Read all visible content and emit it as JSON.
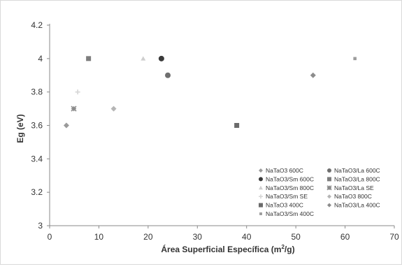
{
  "chart_data": {
    "type": "scatter",
    "title": "",
    "xlabel": "Área Superficial Específica (m²/g)",
    "ylabel": "Eg (eV)",
    "xlim": [
      0,
      70
    ],
    "ylim": [
      3,
      4.2
    ],
    "x_ticks": [
      "0",
      "10",
      "20",
      "30",
      "40",
      "50",
      "60",
      "70"
    ],
    "y_ticks": [
      "3",
      "3.2",
      "3.4",
      "3.6",
      "3.8",
      "4",
      "4.2"
    ],
    "grid": false,
    "legend_position": "bottom-right",
    "series": [
      {
        "name": "NaTaO3 600C",
        "marker": "diamond",
        "color": "#9a9a9a",
        "points": [
          {
            "x": 3.4,
            "y": 3.6
          }
        ]
      },
      {
        "name": "NaTaO3/La 600C",
        "marker": "circle",
        "color": "#6f6f6f",
        "points": [
          {
            "x": 24,
            "y": 3.9
          }
        ]
      },
      {
        "name": "NaTaO3/Sm 600C",
        "marker": "circle",
        "color": "#3a3a3a",
        "points": [
          {
            "x": 22.7,
            "y": 4.0
          }
        ]
      },
      {
        "name": "NaTaO3/La 800C",
        "marker": "square",
        "color": "#7d7d7d",
        "points": [
          {
            "x": 7.9,
            "y": 4.0
          }
        ]
      },
      {
        "name": "NaTaO3/Sm 800C",
        "marker": "triangle",
        "color": "#cfcfcf",
        "points": [
          {
            "x": 19,
            "y": 4.0
          }
        ]
      },
      {
        "name": "NaTaO3/La SE",
        "marker": "asterisk",
        "color": "#8a8a8a",
        "points": [
          {
            "x": 4.9,
            "y": 3.7
          }
        ]
      },
      {
        "name": "NaTaO3/Sm SE",
        "marker": "plus",
        "color": "#d6d6d6",
        "points": [
          {
            "x": 5.7,
            "y": 3.8
          }
        ]
      },
      {
        "name": "NaTaO3 800C",
        "marker": "diamond",
        "color": "#b5b5b5",
        "points": [
          {
            "x": 13,
            "y": 3.7
          }
        ]
      },
      {
        "name": "NaTaO3 400C",
        "marker": "square",
        "color": "#6b6b6b",
        "points": [
          {
            "x": 38,
            "y": 3.6
          }
        ]
      },
      {
        "name": "NaTaO3/La 400C",
        "marker": "diamond",
        "color": "#8c8c8c",
        "points": [
          {
            "x": 53.5,
            "y": 3.9
          }
        ]
      },
      {
        "name": "NaTaO3/Sm 400C",
        "marker": "square-small",
        "color": "#9c9c9c",
        "points": [
          {
            "x": 62,
            "y": 4.0
          }
        ]
      }
    ]
  }
}
